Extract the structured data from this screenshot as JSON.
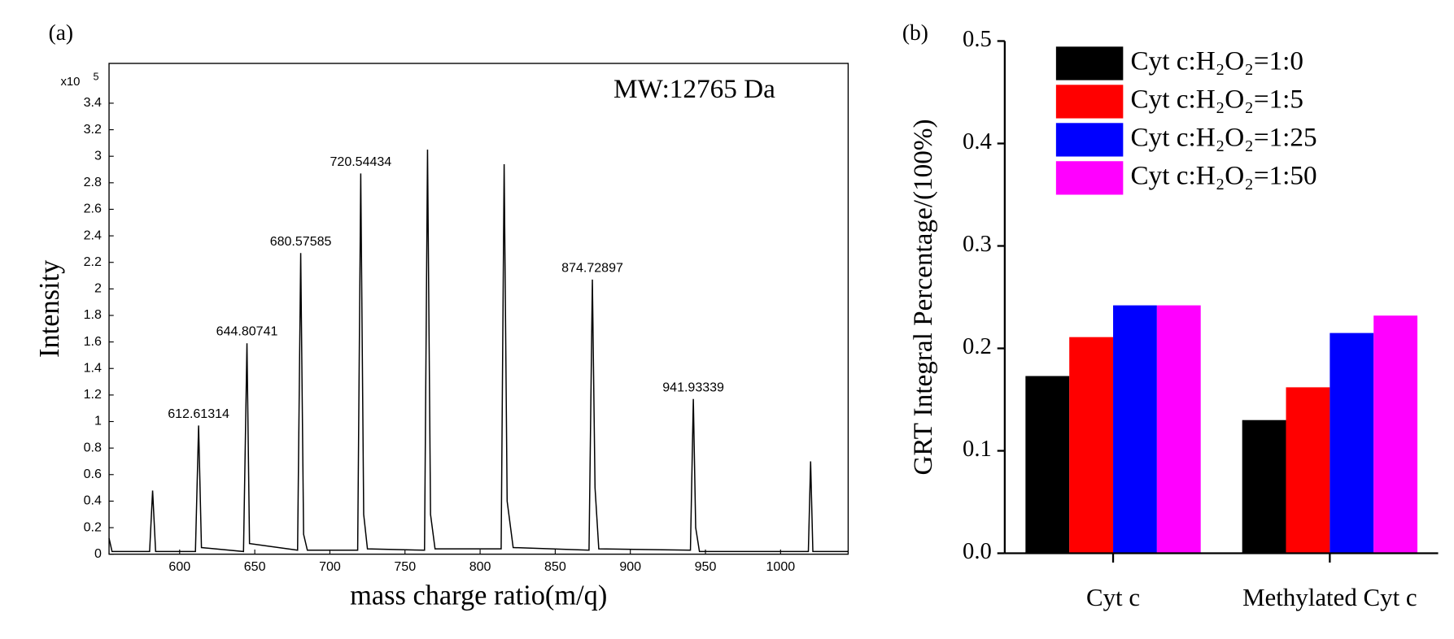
{
  "chart_data": [
    {
      "type": "line",
      "panel_label": "(a)",
      "annotation": "MW:12765 Da",
      "x_label": "mass charge ratio(m/q)",
      "y_label": "Intensity",
      "y_multiplier": "x10",
      "y_multiplier_exponent": "5",
      "color": "#000000",
      "xlim": [
        553,
        1045
      ],
      "ylim": [
        0,
        3.7
      ],
      "xticks": [
        600,
        650,
        700,
        750,
        800,
        850,
        900,
        950,
        1000
      ],
      "yticks": [
        0,
        0.2,
        0.4,
        0.6,
        0.8,
        1,
        1.2,
        1.4,
        1.6,
        1.8,
        2,
        2.2,
        2.4,
        2.6,
        2.8,
        3,
        3.2,
        3.4
      ],
      "x": [
        553,
        555,
        580,
        582,
        584,
        610.5,
        612.61314,
        614.5,
        642.5,
        644.80741,
        646.5,
        678.5,
        680.57585,
        682.5,
        685,
        718.5,
        720.54434,
        722.5,
        725,
        763,
        765,
        767,
        770,
        814,
        816,
        818,
        822,
        872.5,
        874.72897,
        876.5,
        879,
        940,
        941.93339,
        943.5,
        946,
        1018.5,
        1020,
        1021.5,
        1045
      ],
      "values": [
        0.12,
        0.02,
        0.02,
        0.48,
        0.02,
        0.02,
        0.97,
        0.05,
        0.02,
        1.59,
        0.08,
        0.03,
        2.27,
        0.15,
        0.03,
        0.03,
        2.87,
        0.3,
        0.04,
        0.03,
        3.05,
        0.3,
        0.04,
        0.04,
        2.94,
        0.4,
        0.05,
        0.03,
        2.07,
        0.5,
        0.04,
        0.03,
        1.17,
        0.2,
        0.02,
        0.02,
        0.7,
        0.02,
        0.02
      ],
      "peak_labels": [
        {
          "text": "612.61314",
          "x": 612.61314,
          "y": 0.97
        },
        {
          "text": "644.80741",
          "x": 644.80741,
          "y": 1.59
        },
        {
          "text": "680.57585",
          "x": 680.57585,
          "y": 2.27
        },
        {
          "text": "720.54434",
          "x": 720.54434,
          "y": 2.87
        },
        {
          "text": "874.72897",
          "x": 874.72897,
          "y": 2.07
        },
        {
          "text": "941.93339",
          "x": 941.93339,
          "y": 1.17
        }
      ]
    },
    {
      "type": "bar",
      "panel_label": "(b)",
      "y_label": "GRT Integral Percentage/(100%)",
      "categories": [
        "Cyt c",
        "Methylated Cyt c"
      ],
      "series": [
        {
          "name": "Cyt c:H₂O₂=1:0",
          "color": "#000000",
          "values": [
            0.173,
            0.13
          ]
        },
        {
          "name": "Cyt c:H₂O₂=1:5",
          "color": "#ff0000",
          "values": [
            0.211,
            0.162
          ]
        },
        {
          "name": "Cyt c:H₂O₂=1:25",
          "color": "#0000ff",
          "values": [
            0.242,
            0.215
          ]
        },
        {
          "name": "Cyt c:H₂O₂=1:50",
          "color": "#ff00ff",
          "values": [
            0.242,
            0.232
          ]
        }
      ],
      "ylim": [
        0,
        0.5
      ],
      "yticks": [
        {
          "value": 0,
          "label": "0.0"
        },
        0.1,
        0.2,
        0.3,
        0.4,
        0.5
      ],
      "legend": "upper center"
    }
  ]
}
